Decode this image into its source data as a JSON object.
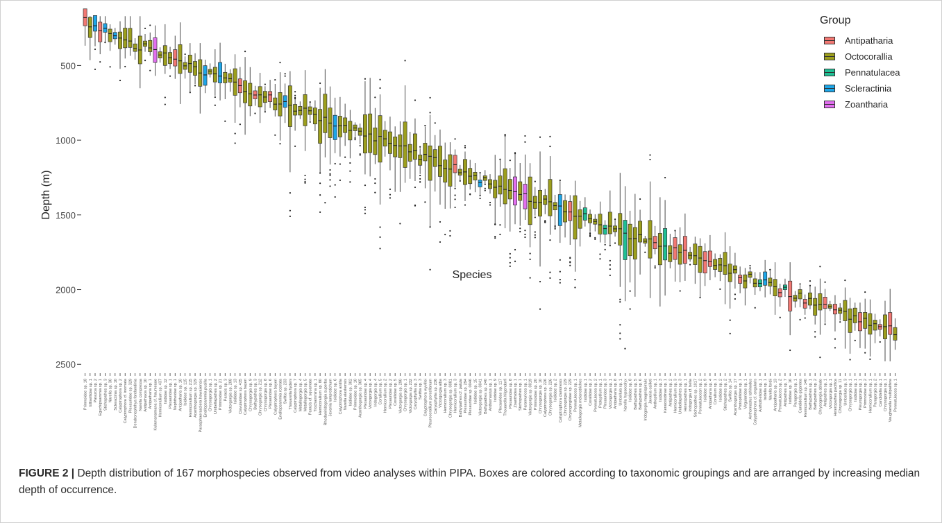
{
  "caption": {
    "label": "FIGURE 2 |",
    "text": " Depth distribution of 167 morphospecies observed from video analyses within PIPA. Boxes are colored according to taxonomic groupings and are arranged by increasing median depth of occurrence."
  },
  "chart_data": {
    "type": "boxplot",
    "title": "",
    "xlabel": "Species",
    "ylabel": "Depth (m)",
    "y_reversed": true,
    "ylim": [
      2550,
      150
    ],
    "yticks": [
      "500",
      "1000",
      "1500",
      "2000",
      "2500"
    ],
    "ytick_values": [
      500,
      1000,
      1500,
      2000,
      2500
    ],
    "legend": {
      "title": "Group",
      "position": "top-right",
      "entries": [
        {
          "name": "Antipatharia",
          "color": "#f27873"
        },
        {
          "name": "Octocorallia",
          "color": "#9d9f1d"
        },
        {
          "name": "Pennatulacea",
          "color": "#1fbf94"
        },
        {
          "name": "Scleractinia",
          "color": "#1ea6e8"
        },
        {
          "name": "Zoantharia",
          "color": "#e26ff0"
        }
      ]
    },
    "groups": [
      "Antipatharia",
      "Octocorallia",
      "Pennatulacea",
      "Scleractinia",
      "Zoantharia"
    ],
    "categories": [
      "Primnoidae sp. 18",
      "Ellisellidae sp. 1",
      "Parazoa sp. 2",
      "Eguchipsammia sp. 1",
      "Stichopathes sp. 3",
      "Narella sp. 30",
      "Scleractinia sp. 10",
      "Calyptrophora sp. 2",
      "Calyptrophora cf. inornata",
      "Plexauridae sp. 329",
      "Dendronephthya fantlandinia",
      "Narella compressa",
      "Antipathaxia sp. 10",
      "Antipatharia sp. 1",
      "Kulamanamana cf. haumeaae",
      "Hemicorallium sp. 437",
      "Isididae sp. 12",
      "Plexauridae sp. 1",
      "Nephtheidae sp. 1",
      "Antipatharia sp. 10",
      "Isididae sp. 115",
      "Hemicorallium sp. 215",
      "Acanthogorgia sp. 329",
      "Parasphaerasclera hawaiiensis",
      "Enallopsammia pusilla",
      "Chrysogorgia sp. 1",
      "Umbellapathes sp. 2",
      "Primnoidae sp. 21",
      "Paracis sp. 3",
      "Victorgorgia sp. 208",
      "Isididae sp. 13",
      "Clavularidae sp. 435",
      "Calyptrophora bayeri",
      "Chrysogorgia sp. 9",
      "Bathypathes sp. 3",
      "Chrysogorgia sp. 212",
      "Chrysogorgia sp. 8",
      "Plexauridae sp. 6",
      "Calyptrophora bayeri",
      "Enallopsammia rostrata",
      "Swiftia sp. 233",
      "Thouarella hydeni",
      "Calyptrophora sp. 7",
      "Metallogorgia sp. 4",
      "Metallogorgia sp. 5",
      "Paracis cf. squamata",
      "Trochammina sp. 1",
      "Hemicorallium sp. 80",
      "Rhodaniridogorgia superba",
      "Javania lamprotichum",
      "Isididae sp. 6",
      "Calyptrophora antilla",
      "Narella alaskensis",
      "Isididae sp. 302",
      "Primnoidae sp. 10",
      "Acanthogorgia sp. 365",
      "Plexauridae sp. 4",
      "Victorgorgia sp. 4",
      "Iridogorgia sp. 4",
      "Corallium sp. 5",
      "Hemicorallium sp. 2",
      "Plexauridae sp. 2",
      "Corallidae sp. 5",
      "Victorgorgia sp. 290",
      "Chrysogorgia sp. 1",
      "Victorgorgia sp. 232",
      "Caryophyllia sp. 3",
      "Swiftia sp. 3",
      "Calyptrophora wyvillei",
      "Pleurocorallium porcellanum",
      "Caryophyllia sp. 236",
      "Victorgorgia alba",
      "Hemicorallium sp. 3",
      "Chrysogorgia sp. 0081",
      "Hemicorallium sp. 3",
      "Bathypathes cf. patula",
      "Plexauridae sp. 294",
      "Plexauridae sp. 0046",
      "Isididae sp. 15",
      "Victorgorgia sp. 0041",
      "Bathypathes sp. 240",
      "Anthomastus sp. 1",
      "Isididae sp. 9",
      "Plexauridae sp. 117",
      "Thouarella hilgendorfi",
      "Plexauridae sp. 8",
      "Zoanthidea sp. 1",
      "Stichopathes sp. 1",
      "Paramuricea sp. 1",
      "Victorgorgia sp. 0019",
      "Primnoidae sp. 20",
      "Chrysogorgia sp. 10",
      "Calyptrophora sp. 226",
      "Chrysogorgia sp. 226",
      "Isididae sp. 2",
      "Calyptrophora clarionesis",
      "Chrysogorgia sp. 229",
      "Chrysogorgiidae sp. 229",
      "Pennatulacea sp. 1",
      "Metallogorgia melanotrichos",
      "Isididae sp. 1",
      "Corallidae sp. 2",
      "Pennatulacea sp. 2",
      "Protoptilum sp. 1",
      "Plexauridae sp. 3",
      "Victorgorgia sp. 1",
      "Antipatharia sp. 8",
      "Umbellula sp. 1",
      "Narella hypsocalyx",
      "Isididae sp. 8",
      "Bathypathes sp. 5",
      "Bathypathes sp. 6",
      "Iridogorgia magnispiralis",
      "Javania cailleti",
      "Anthoptilum sp. 1",
      "Isididae sp. 3",
      "Keratoisidinae sp. 1",
      "Antipathes sp. 2",
      "Hemicorallium sp. 3",
      "Umbellapathes sp. 3",
      "Heteropathes sp. 1",
      "Iridogorgia cf. bella",
      "Stichopathes sp. 1017",
      "Pennatulacean sp. 2",
      "Isididae sp. 9",
      "Antipatharia sp. 4",
      "Corallium sp. 1",
      "Isididae sp. 2",
      "Stichopathes sp. 2",
      "Swiftia sp. 14",
      "Acanthogorgia sp. 17",
      "Protoptilidae sp. 1",
      "Virgularidae sp. 1",
      "Anthomastus tahinodus",
      "Calyptrophora cf. angularis",
      "Anthothelidae sp. 1",
      "Isidella sp. 1",
      "Narella fordii",
      "Antipatharia sp. 13",
      "Pennatulacea sp. 2",
      "Antipathes sp. 7",
      "Isididae sp. 16",
      "Paragorgia sp. 1",
      "Candidella gigantea",
      "Hemicorallium sp. 140",
      "Bathypathes sp. 1",
      "Bathypathes sp. 2",
      "Chrysogorgia abludo",
      "Antipathes sp. 1",
      "Victorgorgia sp. 1",
      "Heteropathes pacifica",
      "Chrysogorgia sp. 11",
      "Umbellula sp. 3",
      "Chrysogorgia sp. 1",
      "Isididae sp. 1",
      "Pleurogorgia sp. 1",
      "Primnoidae sp. 2",
      "Hemicorallium sp. 1",
      "Paragorgia sp. 2",
      "Candidella sp. 1",
      "Chrysogorgia sp. 1",
      "Vaughanella multipalifera",
      "Pennatulacea sp. 1"
    ]
  }
}
